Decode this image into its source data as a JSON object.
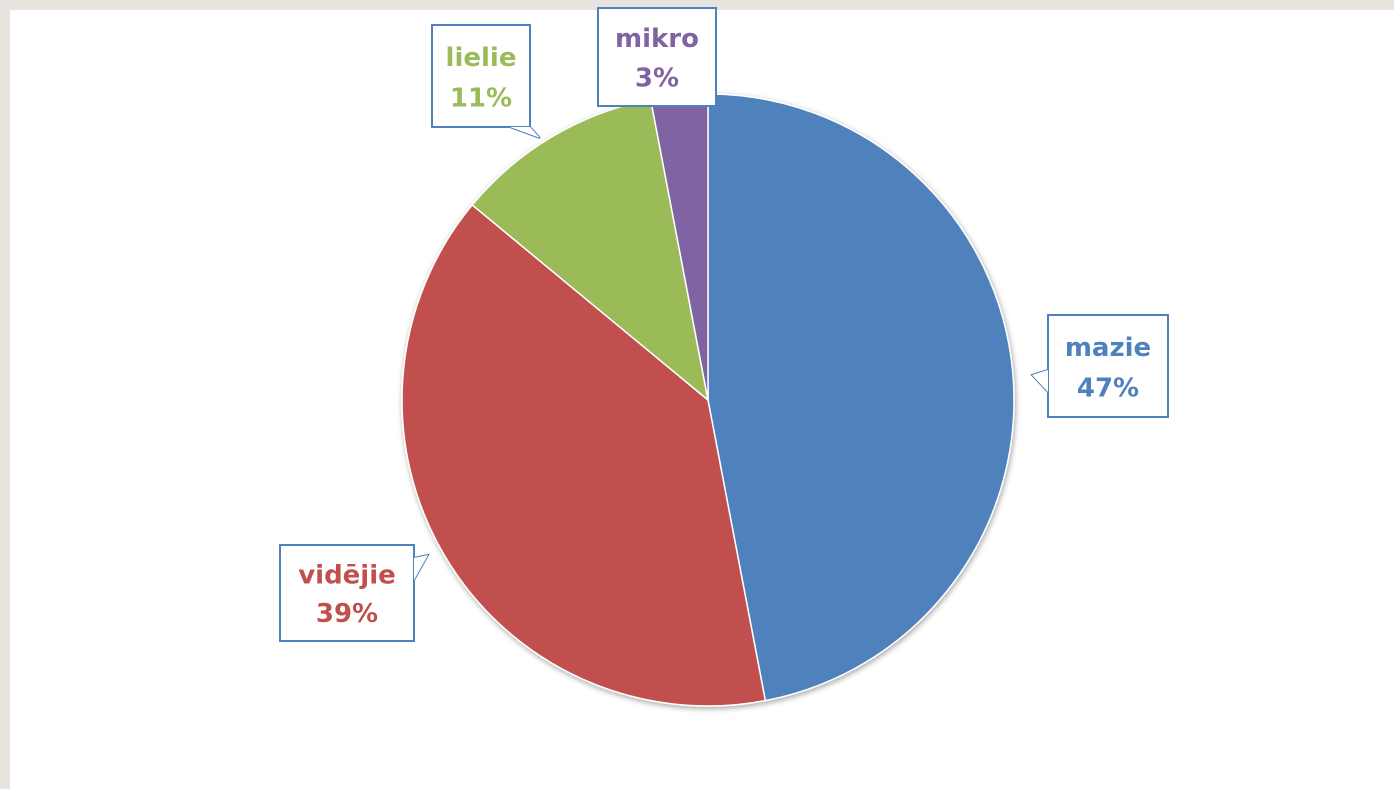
{
  "chart_data": {
    "type": "pie",
    "title": "",
    "slices": [
      {
        "label": "mazie",
        "value": 47,
        "percent_label": "47%",
        "color": "#4f81bd"
      },
      {
        "label": "vidējie",
        "value": 39,
        "percent_label": "39%",
        "color": "#c0504d"
      },
      {
        "label": "lielie",
        "value": 11,
        "percent_label": "11%",
        "color": "#9bbb59"
      },
      {
        "label": "mikro",
        "value": 3,
        "percent_label": "3%",
        "color": "#8064a2"
      }
    ],
    "start_angle": "12 o'clock",
    "direction": "clockwise",
    "legend": "none",
    "data_labels": "callout boxes with category name and percent",
    "callout_border_color": "#4f81bd"
  }
}
